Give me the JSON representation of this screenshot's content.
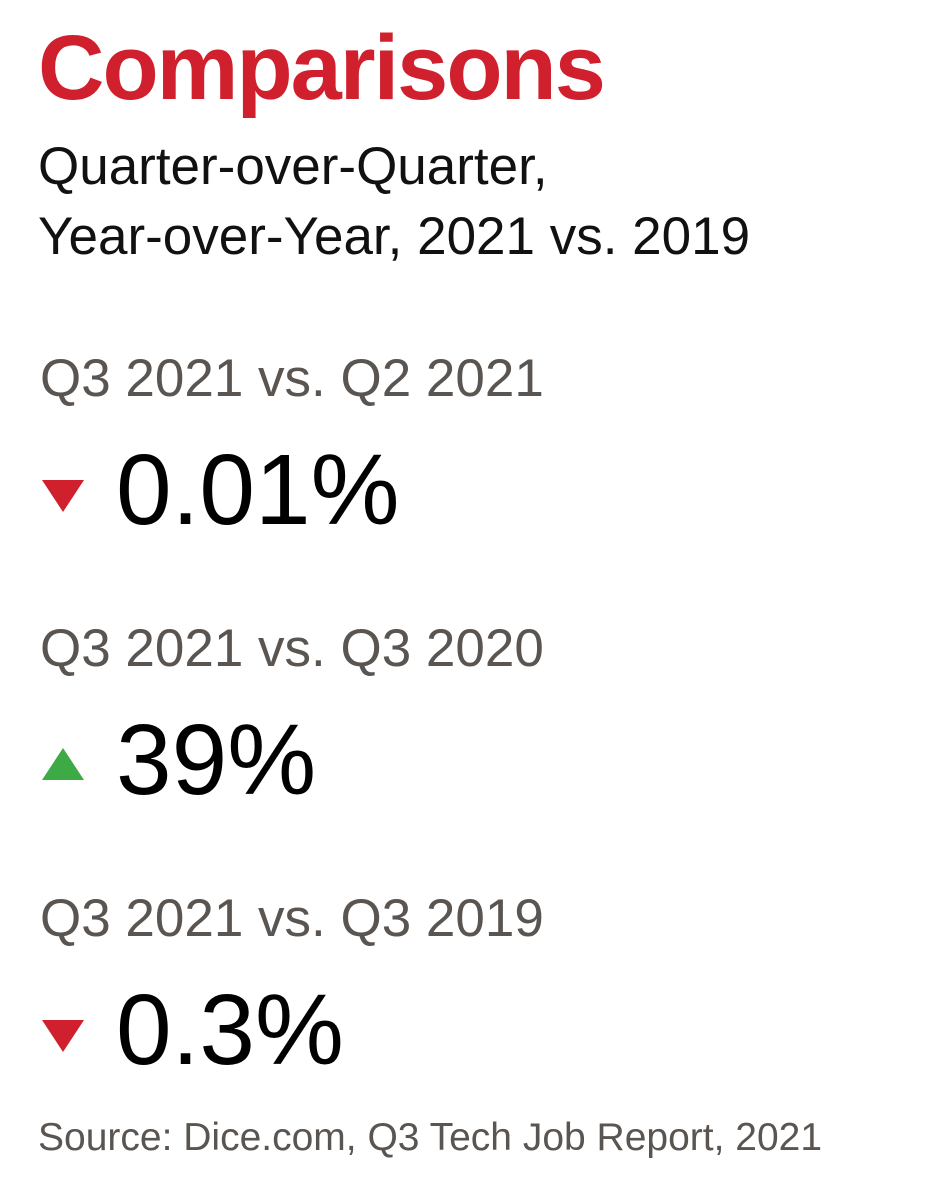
{
  "header": {
    "title": "Comparisons",
    "subtitle_lines": [
      "Quarter-over-Quarter,",
      "Year-over-Year, 2021 vs. 2019"
    ]
  },
  "comparisons": [
    {
      "label": "Q3 2021 vs. Q2 2021",
      "value": "0.01%",
      "trend": "down",
      "color": "#d0202e"
    },
    {
      "label": "Q3 2021 vs. Q3 2020",
      "value": "39%",
      "trend": "up",
      "color": "#3daa45"
    },
    {
      "label": "Q3 2021 vs. Q3 2019",
      "value": "0.3%",
      "trend": "down",
      "color": "#d0202e"
    }
  ],
  "source": "Source: Dice.com, Q3 Tech Job Report, 2021"
}
